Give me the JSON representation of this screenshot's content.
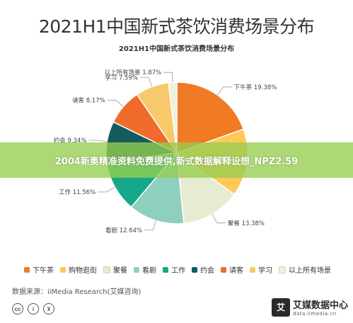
{
  "page": {
    "title": "2021H1中国新式茶饮消费场景分布",
    "banner": "2004新奥精准资料免费提供,新式数据解释设想_NPZ2.59",
    "source": "数据来源：iiMedia Research(艾媒咨询)",
    "brand_name": "艾媒数据中心",
    "brand_url": "data.iimedia.cn",
    "brand_logo": "艾",
    "license_icons": [
      "cc-icon",
      "attribution-icon",
      "noncommercial-icon"
    ]
  },
  "chart_data": {
    "type": "pie",
    "title": "2021H1中国新式茶饮消费场景分布",
    "legend_position": "bottom",
    "slices": [
      {
        "name": "下午茶",
        "value": 19.38,
        "label": "下午茶 19.38%",
        "color": "#f07b24"
      },
      {
        "name": "购物逛街",
        "value": 15.29,
        "label": "",
        "color": "#ffc857"
      },
      {
        "name": "聚餐",
        "value": 13.38,
        "label": "聚餐 13.38%",
        "color": "#e6ecd1"
      },
      {
        "name": "看剧",
        "value": 12.64,
        "label": "看剧 12.64%",
        "color": "#8ecfbd"
      },
      {
        "name": "工作",
        "value": 11.56,
        "label": "工作 11.56%",
        "color": "#17a88a"
      },
      {
        "name": "约会",
        "value": 9.34,
        "label": "约会 9.34%",
        "color": "#145c5c"
      },
      {
        "name": "请客",
        "value": 8.17,
        "label": "请客 8.17%",
        "color": "#f06b2c"
      },
      {
        "name": "学习",
        "value": 7.59,
        "label": "学习 7.59%",
        "color": "#f7c96a"
      },
      {
        "name": "以上所有场景",
        "value": 1.87,
        "label": "以上所有场景 1.87%",
        "color": "#eef2dc"
      }
    ]
  }
}
